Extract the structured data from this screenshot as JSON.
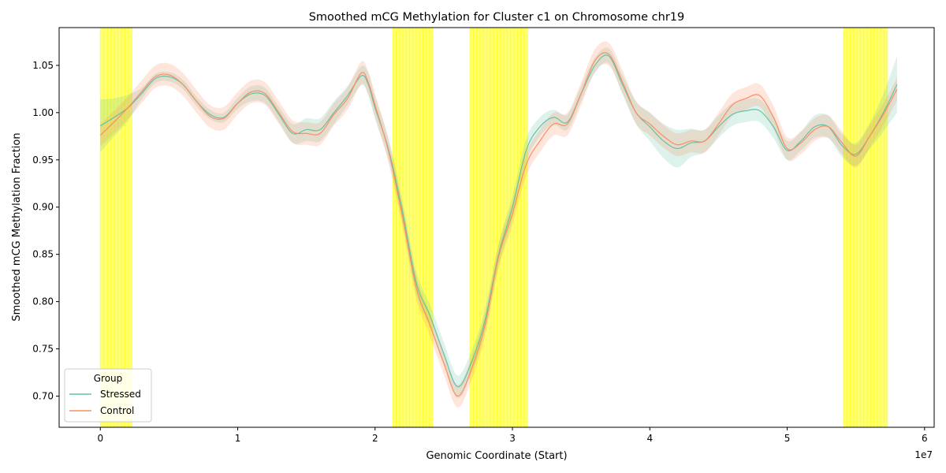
{
  "chart_data": {
    "type": "line",
    "title": "Smoothed mCG Methylation for Cluster c1 on Chromosome chr19",
    "xlabel": "Genomic Coordinate (Start)",
    "ylabel": "Smoothed mCG Methylation Fraction",
    "x_offset_label": "1e7",
    "xlim": [
      -0.3,
      6.07
    ],
    "ylim": [
      0.667,
      1.09
    ],
    "x_ticks": [
      0,
      1,
      2,
      3,
      4,
      5,
      6
    ],
    "y_ticks": [
      0.7,
      0.75,
      0.8,
      0.85,
      0.9,
      0.95,
      1.0,
      1.05
    ],
    "x_tick_labels": [
      "0",
      "1",
      "2",
      "3",
      "4",
      "5",
      "6"
    ],
    "y_tick_labels": [
      "0.70",
      "0.75",
      "0.80",
      "0.85",
      "0.90",
      "0.95",
      "1.00",
      "1.05"
    ],
    "grid": false,
    "legend": {
      "title": "Group",
      "placement": "lower-left"
    },
    "highlight_regions": [
      {
        "start": 0.0,
        "end": 0.23
      },
      {
        "start": 2.13,
        "end": 2.42
      },
      {
        "start": 2.69,
        "end": 3.11
      },
      {
        "start": 5.41,
        "end": 5.73
      }
    ],
    "series": [
      {
        "name": "Stressed",
        "color": "#66c2a5",
        "x": [
          0.0,
          0.1,
          0.2,
          0.3,
          0.4,
          0.5,
          0.6,
          0.7,
          0.8,
          0.9,
          1.0,
          1.1,
          1.2,
          1.3,
          1.4,
          1.5,
          1.6,
          1.7,
          1.8,
          1.9,
          1.95,
          2.0,
          2.1,
          2.2,
          2.3,
          2.4,
          2.5,
          2.6,
          2.7,
          2.8,
          2.9,
          3.0,
          3.1,
          3.2,
          3.3,
          3.4,
          3.5,
          3.6,
          3.7,
          3.8,
          3.9,
          4.0,
          4.1,
          4.2,
          4.3,
          4.4,
          4.5,
          4.6,
          4.7,
          4.8,
          4.9,
          5.0,
          5.1,
          5.2,
          5.3,
          5.4,
          5.5,
          5.6,
          5.7,
          5.8
        ],
        "values": [
          0.986,
          0.995,
          1.005,
          1.02,
          1.036,
          1.038,
          1.03,
          1.012,
          0.998,
          0.995,
          1.01,
          1.02,
          1.018,
          0.998,
          0.978,
          0.982,
          0.982,
          1.0,
          1.018,
          1.039,
          1.03,
          1.005,
          0.96,
          0.895,
          0.82,
          0.785,
          0.745,
          0.71,
          0.735,
          0.78,
          0.85,
          0.9,
          0.96,
          0.985,
          0.995,
          0.99,
          1.02,
          1.05,
          1.06,
          1.03,
          1.0,
          0.985,
          0.97,
          0.962,
          0.968,
          0.97,
          0.985,
          0.998,
          1.002,
          1.002,
          0.985,
          0.96,
          0.97,
          0.985,
          0.985,
          0.965,
          0.956,
          0.975,
          1.0,
          1.03
        ],
        "ci": [
          0.028,
          0.02,
          0.014,
          0.006,
          0.005,
          0.005,
          0.005,
          0.005,
          0.005,
          0.005,
          0.006,
          0.008,
          0.008,
          0.008,
          0.01,
          0.012,
          0.012,
          0.012,
          0.01,
          0.01,
          0.012,
          0.012,
          0.012,
          0.012,
          0.012,
          0.012,
          0.012,
          0.012,
          0.012,
          0.012,
          0.012,
          0.012,
          0.012,
          0.01,
          0.008,
          0.008,
          0.008,
          0.008,
          0.008,
          0.01,
          0.012,
          0.015,
          0.018,
          0.02,
          0.015,
          0.012,
          0.012,
          0.012,
          0.012,
          0.012,
          0.012,
          0.01,
          0.01,
          0.012,
          0.012,
          0.012,
          0.012,
          0.014,
          0.02,
          0.03
        ]
      },
      {
        "name": "Control",
        "color": "#fc8d62",
        "x": [
          0.0,
          0.1,
          0.2,
          0.3,
          0.4,
          0.5,
          0.6,
          0.7,
          0.8,
          0.9,
          1.0,
          1.1,
          1.2,
          1.3,
          1.4,
          1.5,
          1.6,
          1.7,
          1.8,
          1.9,
          1.95,
          2.0,
          2.1,
          2.2,
          2.3,
          2.4,
          2.5,
          2.6,
          2.7,
          2.8,
          2.9,
          3.0,
          3.1,
          3.2,
          3.3,
          3.4,
          3.5,
          3.6,
          3.7,
          3.8,
          3.9,
          4.0,
          4.1,
          4.2,
          4.3,
          4.4,
          4.5,
          4.6,
          4.7,
          4.8,
          4.9,
          5.0,
          5.1,
          5.2,
          5.3,
          5.4,
          5.5,
          5.6,
          5.7,
          5.8
        ],
        "values": [
          0.976,
          0.99,
          1.005,
          1.022,
          1.038,
          1.04,
          1.03,
          1.012,
          0.996,
          0.994,
          1.01,
          1.022,
          1.02,
          1.0,
          0.98,
          0.978,
          0.978,
          0.998,
          1.015,
          1.042,
          1.032,
          1.008,
          0.958,
          0.89,
          0.815,
          0.775,
          0.735,
          0.7,
          0.728,
          0.775,
          0.848,
          0.893,
          0.945,
          0.97,
          0.988,
          0.988,
          1.02,
          1.055,
          1.062,
          1.033,
          1.0,
          0.988,
          0.975,
          0.966,
          0.97,
          0.97,
          0.988,
          1.008,
          1.015,
          1.018,
          0.995,
          0.962,
          0.968,
          0.982,
          0.985,
          0.968,
          0.954,
          0.975,
          0.998,
          1.025
        ]
      }
    ]
  }
}
